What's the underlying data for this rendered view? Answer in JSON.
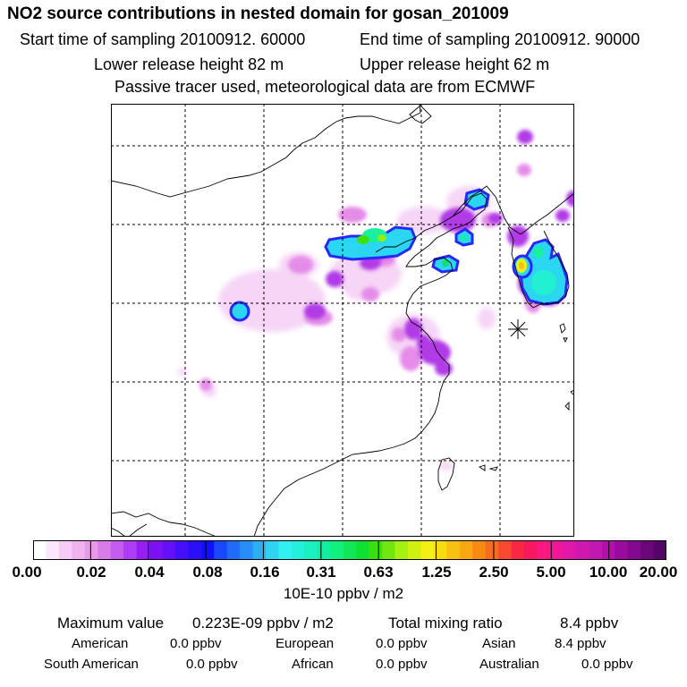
{
  "header": {
    "title": "NO2 source contributions in nested domain for gosan_201009",
    "start_time": "Start time of sampling 20100912. 60000",
    "end_time": "End time of sampling 20100912. 90000",
    "lower_height": "Lower release height   82 m",
    "upper_height": "Upper release height   62 m",
    "note": "Passive tracer used, meteorological data are from ECMWF"
  },
  "scale": {
    "ticks": [
      "0.00",
      "0.02",
      "0.04",
      "0.08",
      "0.16",
      "0.31",
      "0.63",
      "1.25",
      "2.50",
      "5.00",
      "10.00",
      "20.00"
    ],
    "unit": "10E-10 ppbv / m2",
    "colors": [
      "#ffffff",
      "#fbe6fb",
      "#f6ccf6",
      "#f0b2f0",
      "#e89ae8",
      "#d87ce8",
      "#c45cf0",
      "#ad3cf4",
      "#9620f4",
      "#7d10f4",
      "#6210f8",
      "#4410fa",
      "#2a10fa",
      "#1010fa",
      "#1848fa",
      "#1f6cf8",
      "#268ef6",
      "#2bb0f4",
      "#30d2f2",
      "#30f0f2",
      "#22f0da",
      "#18f0c0",
      "#10f0a0",
      "#10f07c",
      "#10e858",
      "#10e030",
      "#3ce010",
      "#70e810",
      "#a4f010",
      "#d0f010",
      "#f4f010",
      "#f8dc10",
      "#f8c010",
      "#f8a810",
      "#f88a10",
      "#f86c20",
      "#f84830",
      "#f82840",
      "#f81860",
      "#f81880",
      "#f01898",
      "#e018a8",
      "#d018b0",
      "#c018b0",
      "#b010a8",
      "#9a0a9c",
      "#820890",
      "#6a0678",
      "#540468"
    ],
    "colors_desc": "gradient colors of the scale bar"
  },
  "footer": {
    "max_label": "Maximum value",
    "max_value": "0.223E-09 ppbv / m2",
    "total_label": "Total mixing ratio",
    "total_value": "8.4 ppbv",
    "regions": [
      {
        "name": "American",
        "value": "0.0 ppbv"
      },
      {
        "name": "European",
        "value": "0.0 ppbv"
      },
      {
        "name": "Asian",
        "value": "8.4 ppbv"
      },
      {
        "name": "South American",
        "value": "0.0 ppbv"
      },
      {
        "name": "African",
        "value": "0.0 ppbv"
      },
      {
        "name": "Australian",
        "value": "0.0 ppbv"
      }
    ]
  }
}
